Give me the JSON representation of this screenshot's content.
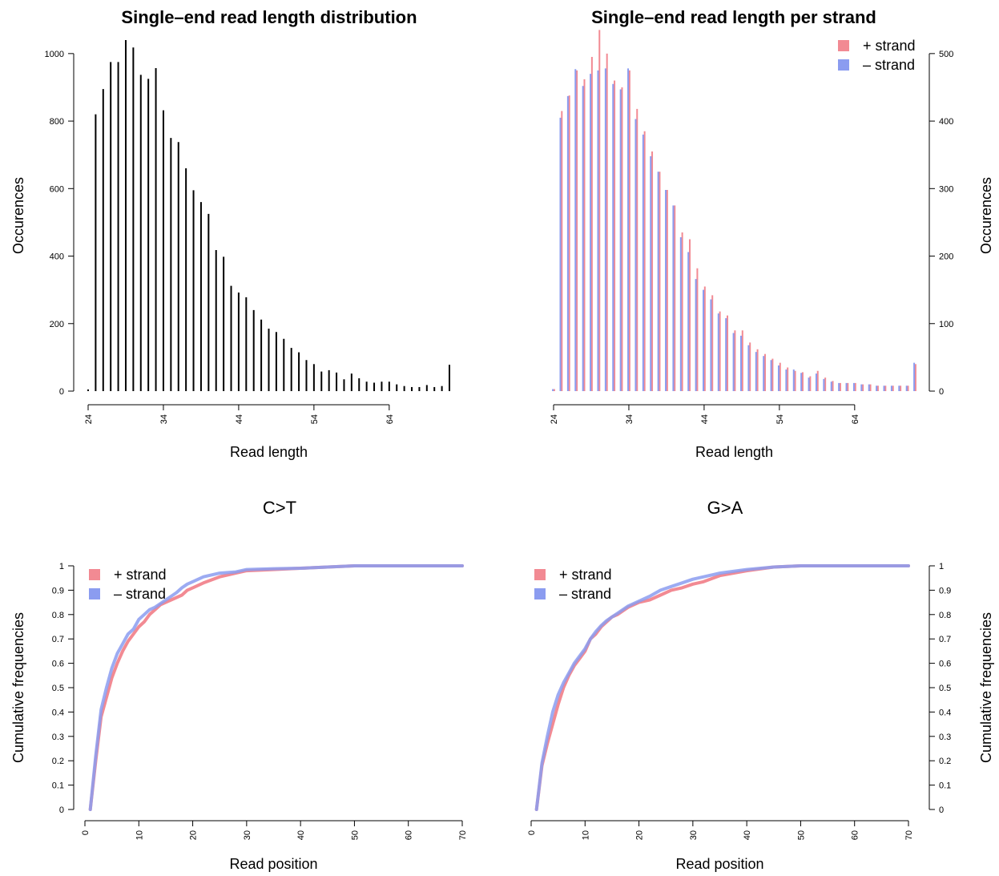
{
  "chart_data": [
    {
      "id": "len_dist",
      "type": "bar",
      "title": "Single–end read length distribution",
      "xlabel": "Read length",
      "ylabel": "Occurences",
      "xlim": [
        24,
        72
      ],
      "ylim": [
        0,
        1040
      ],
      "x_ticks": [
        24,
        34,
        44,
        54,
        64
      ],
      "y_ticks": [
        0,
        200,
        400,
        600,
        800,
        1000
      ],
      "y_axis_side": "left",
      "bar_color": "#000000",
      "x": [
        24,
        25,
        26,
        27,
        28,
        29,
        30,
        31,
        32,
        33,
        34,
        35,
        36,
        37,
        38,
        39,
        40,
        41,
        42,
        43,
        44,
        45,
        46,
        47,
        48,
        49,
        50,
        51,
        52,
        53,
        54,
        55,
        56,
        57,
        58,
        59,
        60,
        61,
        62,
        63,
        64,
        65,
        66,
        67,
        68,
        69,
        70,
        71,
        72
      ],
      "values": [
        5,
        820,
        895,
        975,
        975,
        1040,
        1018,
        937,
        925,
        957,
        832,
        750,
        738,
        660,
        595,
        560,
        525,
        418,
        398,
        312,
        292,
        278,
        240,
        212,
        185,
        175,
        155,
        128,
        115,
        92,
        80,
        58,
        62,
        55,
        35,
        52,
        38,
        28,
        25,
        28,
        28,
        20,
        15,
        12,
        12,
        18,
        12,
        15,
        78
      ]
    },
    {
      "id": "len_strand",
      "type": "bar",
      "title": "Single–end read length per strand",
      "xlabel": "Read length",
      "ylabel": "Occurences",
      "xlim": [
        24,
        72
      ],
      "ylim": [
        0,
        520
      ],
      "x_ticks": [
        24,
        34,
        44,
        54,
        64
      ],
      "y_ticks": [
        0,
        100,
        200,
        300,
        400,
        500
      ],
      "y_axis_side": "right",
      "legend": {
        "position": "top-right"
      },
      "x": [
        24,
        25,
        26,
        27,
        28,
        29,
        30,
        31,
        32,
        33,
        34,
        35,
        36,
        37,
        38,
        39,
        40,
        41,
        42,
        43,
        44,
        45,
        46,
        47,
        48,
        49,
        50,
        51,
        52,
        53,
        54,
        55,
        56,
        57,
        58,
        59,
        60,
        61,
        62,
        63,
        64,
        65,
        66,
        67,
        68,
        69,
        70,
        71,
        72
      ],
      "series": [
        {
          "name": "+ strand",
          "color": "#f28a93",
          "values": [
            3,
            415,
            438,
            475,
            462,
            495,
            535,
            500,
            460,
            450,
            475,
            418,
            385,
            355,
            325,
            298,
            275,
            235,
            225,
            182,
            155,
            142,
            118,
            112,
            90,
            90,
            72,
            62,
            55,
            48,
            42,
            35,
            30,
            28,
            22,
            30,
            20,
            15,
            12,
            12,
            12,
            10,
            10,
            8,
            8,
            8,
            8,
            8,
            40
          ]
        },
        {
          "name": "– strand",
          "color": "#8b9cf0",
          "values": [
            3,
            405,
            437,
            477,
            452,
            470,
            475,
            478,
            455,
            447,
            478,
            403,
            380,
            348,
            325,
            298,
            275,
            228,
            206,
            166,
            150,
            136,
            115,
            108,
            86,
            82,
            68,
            58,
            52,
            46,
            38,
            32,
            32,
            27,
            20,
            26,
            18,
            14,
            12,
            12,
            12,
            10,
            10,
            8,
            8,
            8,
            8,
            8,
            42
          ]
        }
      ]
    },
    {
      "id": "ct",
      "type": "line",
      "title": "C>T",
      "xlabel": "Read position",
      "ylabel": "Cumulative frequencies",
      "xlim": [
        0,
        70
      ],
      "ylim": [
        0,
        1
      ],
      "x_ticks": [
        0,
        10,
        20,
        30,
        40,
        50,
        60,
        70
      ],
      "y_ticks": [
        0,
        0.1,
        0.2,
        0.3,
        0.4,
        0.5,
        0.6,
        0.7,
        0.8,
        0.9,
        1
      ],
      "y_tick_labels": [
        "0",
        "0.1",
        "0.2",
        "0.3",
        "0.4",
        "0.5",
        "0.6",
        "0.7",
        "0.8",
        "0.9",
        "1"
      ],
      "y_axis_side": "left",
      "legend": {
        "position": "top-left"
      },
      "series": [
        {
          "name": "+ strand",
          "color": "#f28a93",
          "x": [
            1,
            2,
            3,
            4,
            5,
            6,
            7,
            8,
            9,
            10,
            11,
            12,
            13,
            14,
            15,
            17,
            18,
            19,
            20,
            22,
            25,
            28,
            30,
            35,
            40,
            45,
            50,
            60,
            70
          ],
          "y": [
            0,
            0.2,
            0.38,
            0.46,
            0.54,
            0.6,
            0.65,
            0.69,
            0.72,
            0.75,
            0.77,
            0.8,
            0.82,
            0.84,
            0.85,
            0.87,
            0.88,
            0.9,
            0.91,
            0.93,
            0.955,
            0.97,
            0.98,
            0.985,
            0.99,
            0.995,
            1,
            1,
            1
          ]
        },
        {
          "name": "– strand",
          "color": "#8b9cf0",
          "x": [
            1,
            2,
            3,
            4,
            5,
            6,
            7,
            8,
            9,
            10,
            11,
            12,
            13,
            14,
            15,
            17,
            18,
            19,
            20,
            22,
            25,
            28,
            30,
            35,
            40,
            45,
            50,
            60,
            70
          ],
          "y": [
            0,
            0.22,
            0.41,
            0.5,
            0.58,
            0.64,
            0.68,
            0.72,
            0.74,
            0.78,
            0.8,
            0.82,
            0.83,
            0.845,
            0.86,
            0.89,
            0.91,
            0.925,
            0.935,
            0.955,
            0.97,
            0.975,
            0.985,
            0.988,
            0.99,
            0.995,
            1,
            1,
            1
          ]
        }
      ]
    },
    {
      "id": "ga",
      "type": "line",
      "title": "G>A",
      "xlabel": "Read position",
      "ylabel": "Cumulative frequencies",
      "xlim": [
        0,
        70
      ],
      "ylim": [
        0,
        1
      ],
      "x_ticks": [
        0,
        10,
        20,
        30,
        40,
        50,
        60,
        70
      ],
      "y_ticks": [
        0,
        0.1,
        0.2,
        0.3,
        0.4,
        0.5,
        0.6,
        0.7,
        0.8,
        0.9,
        1
      ],
      "y_tick_labels": [
        "0",
        "0.1",
        "0.2",
        "0.3",
        "0.4",
        "0.5",
        "0.6",
        "0.7",
        "0.8",
        "0.9",
        "1"
      ],
      "y_axis_side": "right",
      "legend": {
        "position": "top-left"
      },
      "series": [
        {
          "name": "+ strand",
          "color": "#f28a93",
          "x": [
            1,
            2,
            3,
            4,
            5,
            6,
            7,
            8,
            9,
            10,
            11,
            12,
            13,
            14,
            15,
            16,
            18,
            20,
            22,
            24,
            26,
            28,
            30,
            32,
            35,
            40,
            45,
            50,
            60,
            70
          ],
          "y": [
            0,
            0.18,
            0.27,
            0.35,
            0.43,
            0.5,
            0.55,
            0.59,
            0.62,
            0.65,
            0.7,
            0.72,
            0.75,
            0.77,
            0.79,
            0.8,
            0.83,
            0.85,
            0.86,
            0.88,
            0.9,
            0.91,
            0.925,
            0.935,
            0.96,
            0.98,
            0.995,
            1,
            1,
            1
          ]
        },
        {
          "name": "– strand",
          "color": "#8b9cf0",
          "x": [
            1,
            2,
            3,
            4,
            5,
            6,
            7,
            8,
            9,
            10,
            11,
            12,
            13,
            14,
            15,
            16,
            18,
            20,
            22,
            24,
            26,
            28,
            30,
            32,
            35,
            40,
            45,
            50,
            60,
            70
          ],
          "y": [
            0,
            0.19,
            0.3,
            0.4,
            0.47,
            0.52,
            0.56,
            0.6,
            0.63,
            0.66,
            0.7,
            0.73,
            0.755,
            0.775,
            0.79,
            0.805,
            0.835,
            0.855,
            0.875,
            0.9,
            0.915,
            0.93,
            0.945,
            0.955,
            0.97,
            0.985,
            0.995,
            1,
            1,
            1
          ]
        }
      ]
    }
  ]
}
